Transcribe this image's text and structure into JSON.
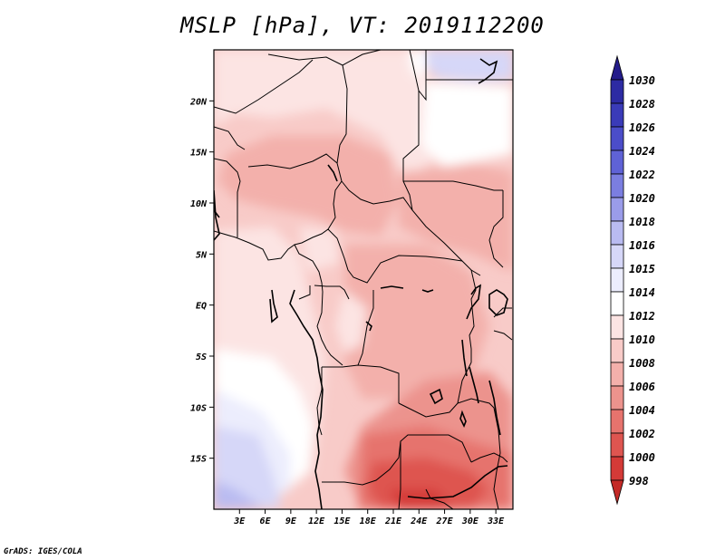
{
  "title": "MSLP [hPa], VT: 2019112200",
  "footer": "GrADS: IGES/COLA",
  "map": {
    "lon_range": [
      0,
      35
    ],
    "lat_range": [
      -20,
      25
    ],
    "lat_labels": [
      {
        "lat": 20,
        "text": "20N"
      },
      {
        "lat": 15,
        "text": "15N"
      },
      {
        "lat": 10,
        "text": "10N"
      },
      {
        "lat": 5,
        "text": "5N"
      },
      {
        "lat": 0,
        "text": "EQ"
      },
      {
        "lat": -5,
        "text": "5S"
      },
      {
        "lat": -10,
        "text": "10S"
      },
      {
        "lat": -15,
        "text": "15S"
      }
    ],
    "lon_labels": [
      {
        "lon": 3,
        "text": "3E"
      },
      {
        "lon": 6,
        "text": "6E"
      },
      {
        "lon": 9,
        "text": "9E"
      },
      {
        "lon": 12,
        "text": "12E"
      },
      {
        "lon": 15,
        "text": "15E"
      },
      {
        "lon": 18,
        "text": "18E"
      },
      {
        "lon": 21,
        "text": "21E"
      },
      {
        "lon": 24,
        "text": "24E"
      },
      {
        "lon": 27,
        "text": "27E"
      },
      {
        "lon": 30,
        "text": "30E"
      },
      {
        "lon": 33,
        "text": "33E"
      }
    ]
  },
  "colorbar": {
    "levels": [
      {
        "label": "1030",
        "color": "#241c8a"
      },
      {
        "label": "1028",
        "color": "#2d2ba3"
      },
      {
        "label": "1026",
        "color": "#3a3bb8"
      },
      {
        "label": "1024",
        "color": "#4b4dc9"
      },
      {
        "label": "1022",
        "color": "#5f62d6"
      },
      {
        "label": "1020",
        "color": "#7b7ee0"
      },
      {
        "label": "1018",
        "color": "#9a9ce9"
      },
      {
        "label": "1016",
        "color": "#b9bbf1"
      },
      {
        "label": "1015",
        "color": "#d6d7f8"
      },
      {
        "label": "1014",
        "color": "#ecedfd"
      },
      {
        "label": "1012",
        "color": "#ffffff"
      },
      {
        "label": "1010",
        "color": "#fce4e3"
      },
      {
        "label": "1008",
        "color": "#f8cbc8"
      },
      {
        "label": "1006",
        "color": "#f3b0ab"
      },
      {
        "label": "1004",
        "color": "#ec938d"
      },
      {
        "label": "1002",
        "color": "#e6736d"
      },
      {
        "label": "1000",
        "color": "#de5550"
      },
      {
        "label": "998",
        "color": "#d43a37"
      }
    ],
    "bottom_color": "#c42a27"
  }
}
